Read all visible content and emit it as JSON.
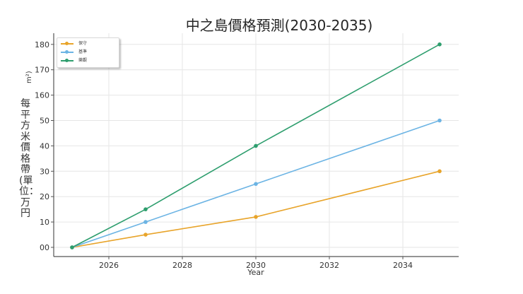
{
  "chart_data": {
    "type": "line",
    "title": "中之島價格預測(2030-2035)",
    "xlabel": "Year",
    "ylabel": "每平方米價格帶(單位：万円",
    "ylabel_unit_fragment": "m²)",
    "x": [
      2025,
      2027,
      2030,
      2035
    ],
    "x_ticks": [
      "2026",
      "2028",
      "2030",
      "2032",
      "2034"
    ],
    "y_ticks": [
      "00",
      "10",
      "20",
      "30",
      "40",
      "50",
      "160",
      "170",
      "180"
    ],
    "ylim": [
      0,
      180
    ],
    "grid": true,
    "legend_position": "upper left",
    "series": [
      {
        "name": "保守",
        "color": "#E8A42A",
        "values": [
          0,
          5,
          12,
          30
        ]
      },
      {
        "name": "基準",
        "color": "#6CB4E4",
        "values": [
          0,
          10,
          25,
          50
        ]
      },
      {
        "name": "樂觀",
        "color": "#2E9E6E",
        "values": [
          0,
          15,
          40,
          180
        ]
      }
    ]
  }
}
